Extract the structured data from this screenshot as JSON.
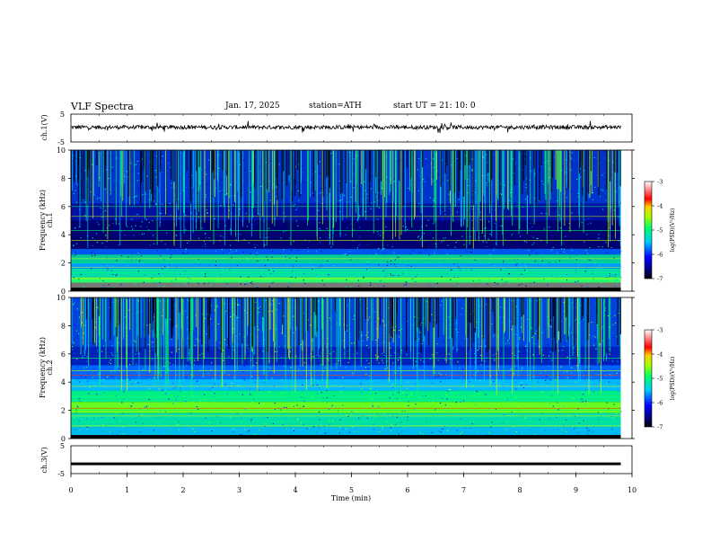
{
  "header": {
    "title": "VLF  Spectra",
    "date": "Jan. 17, 2025",
    "station": "station=ATH",
    "start": "start  UT  =    21: 10: 0"
  },
  "chart_data": [
    {
      "id": "ch1-waveform",
      "type": "line",
      "ylabel": "ch.1(V)",
      "ylim": [
        -5,
        5
      ],
      "yticks": [
        5,
        -5
      ],
      "xlim": [
        0,
        10
      ],
      "x_end": 9.8,
      "series": [
        {
          "baseline": 0.3,
          "color": "#000000"
        }
      ]
    },
    {
      "id": "ch1-spectrogram",
      "type": "heatmap",
      "ylabel": "ch.1\nFrequency (kHz)",
      "ylim": [
        0,
        10
      ],
      "yticks": [
        0,
        2,
        4,
        6,
        8,
        10
      ],
      "xlim": [
        0,
        10
      ],
      "x_end": 9.8,
      "colorbar": {
        "label": "log(PSD)(V²/Hz)",
        "range": [
          -7,
          -3
        ],
        "ticks": [
          -3,
          -4,
          -5,
          -6,
          -7
        ]
      }
    },
    {
      "id": "ch2-spectrogram",
      "type": "heatmap",
      "ylabel": "ch.2\nFrequency (kHz)",
      "ylim": [
        0,
        10
      ],
      "yticks": [
        0,
        2,
        4,
        6,
        8,
        10
      ],
      "xlim": [
        0,
        10
      ],
      "x_end": 9.8,
      "colorbar": {
        "label": "log(PSD)(V²/Hz)",
        "range": [
          -7,
          -3
        ],
        "ticks": [
          -3,
          -4,
          -5,
          -6,
          -7
        ]
      }
    },
    {
      "id": "ch3-waveform",
      "type": "line",
      "ylabel": "ch.3(V)",
      "ylim": [
        -5,
        5
      ],
      "yticks": [
        5,
        -5
      ],
      "xlim": [
        0,
        10
      ],
      "x_end": 9.8,
      "xlabel": "Time  (min)",
      "xticks": [
        0,
        1,
        2,
        3,
        4,
        5,
        6,
        7,
        8,
        9,
        10
      ],
      "series": [
        {
          "baseline": -1.5,
          "color": "#000000"
        }
      ]
    }
  ]
}
